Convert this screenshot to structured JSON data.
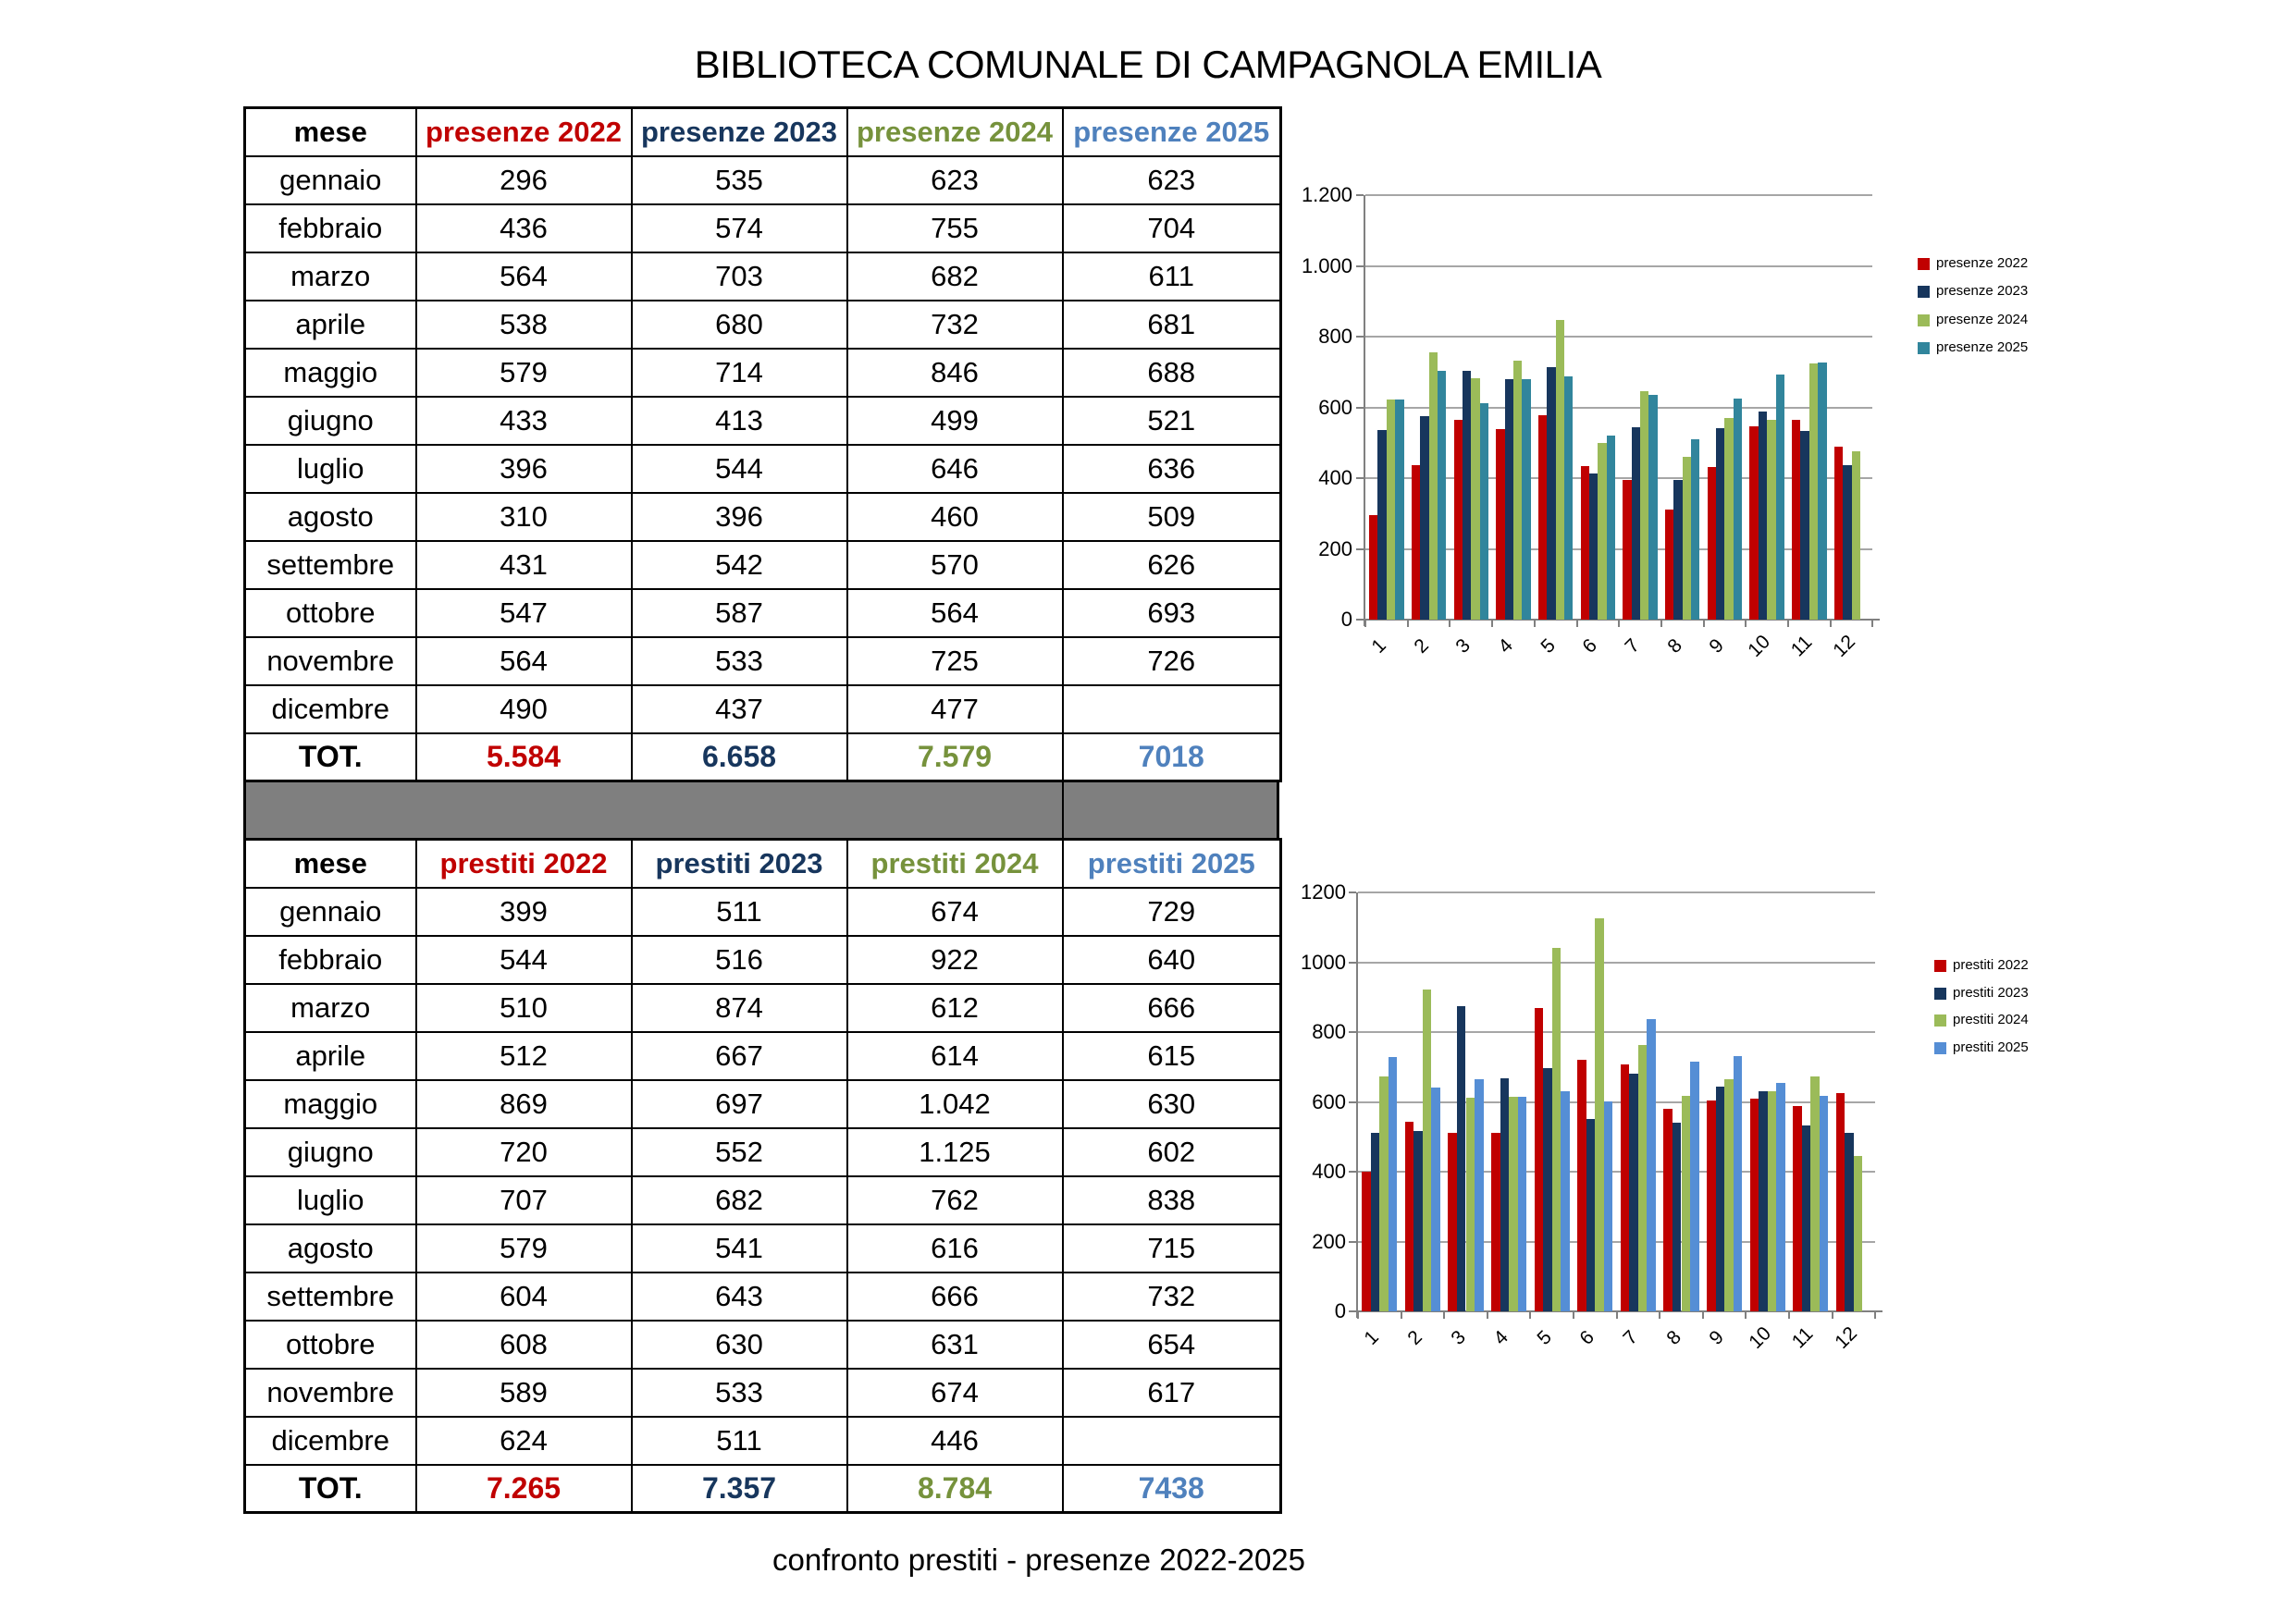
{
  "title": "BIBLIOTECA COMUNALE DI CAMPAGNOLA EMILIA",
  "caption": "confronto prestiti - presenze 2022-2025",
  "months": [
    "gennaio",
    "febbraio",
    "marzo",
    "aprile",
    "maggio",
    "giugno",
    "luglio",
    "agosto",
    "settembre",
    "ottobre",
    "novembre",
    "dicembre"
  ],
  "total_label": "TOT.",
  "column_text_colors": [
    "#000000",
    "#C00000",
    "#17365D",
    "#76923C",
    "#4F81BD"
  ],
  "separator_color": "#7F7F7F",
  "tables": [
    {
      "name": "presenze",
      "headers": [
        "mese",
        "presenze 2022",
        "presenze 2023",
        "presenze 2024",
        "presenze 2025"
      ],
      "rows": [
        [
          "296",
          "535",
          "623",
          "623"
        ],
        [
          "436",
          "574",
          "755",
          "704"
        ],
        [
          "564",
          "703",
          "682",
          "611"
        ],
        [
          "538",
          "680",
          "732",
          "681"
        ],
        [
          "579",
          "714",
          "846",
          "688"
        ],
        [
          "433",
          "413",
          "499",
          "521"
        ],
        [
          "396",
          "544",
          "646",
          "636"
        ],
        [
          "310",
          "396",
          "460",
          "509"
        ],
        [
          "431",
          "542",
          "570",
          "626"
        ],
        [
          "547",
          "587",
          "564",
          "693"
        ],
        [
          "564",
          "533",
          "725",
          "726"
        ],
        [
          "490",
          "437",
          "477",
          ""
        ]
      ],
      "totals": [
        "5.584",
        "6.658",
        "7.579",
        "7018"
      ]
    },
    {
      "name": "prestiti",
      "headers": [
        "mese",
        "prestiti 2022",
        "prestiti 2023",
        "prestiti 2024",
        "prestiti 2025"
      ],
      "rows": [
        [
          "399",
          "511",
          "674",
          "729"
        ],
        [
          "544",
          "516",
          "922",
          "640"
        ],
        [
          "510",
          "874",
          "612",
          "666"
        ],
        [
          "512",
          "667",
          "614",
          "615"
        ],
        [
          "869",
          "697",
          "1.042",
          "630"
        ],
        [
          "720",
          "552",
          "1.125",
          "602"
        ],
        [
          "707",
          "682",
          "762",
          "838"
        ],
        [
          "579",
          "541",
          "616",
          "715"
        ],
        [
          "604",
          "643",
          "666",
          "732"
        ],
        [
          "608",
          "630",
          "631",
          "654"
        ],
        [
          "589",
          "533",
          "674",
          "617"
        ],
        [
          "624",
          "511",
          "446",
          ""
        ]
      ],
      "totals": [
        "7.265",
        "7.357",
        "8.784",
        "7438"
      ]
    }
  ],
  "chart_data": [
    {
      "type": "bar",
      "title": "",
      "categories": [
        "1",
        "2",
        "3",
        "4",
        "5",
        "6",
        "7",
        "8",
        "9",
        "10",
        "11",
        "12"
      ],
      "xlabel": "",
      "ylabel": "",
      "ylim": [
        0,
        1200
      ],
      "y_tick_labels": [
        "0",
        "200",
        "400",
        "600",
        "800",
        "1.000",
        "1.200"
      ],
      "grid": true,
      "legend_position": "right",
      "series": [
        {
          "name": "presenze 2022",
          "color": "#C00000",
          "values": [
            296,
            436,
            564,
            538,
            579,
            433,
            396,
            310,
            431,
            547,
            564,
            490
          ]
        },
        {
          "name": "presenze 2023",
          "color": "#17365D",
          "values": [
            535,
            574,
            703,
            680,
            714,
            413,
            544,
            396,
            542,
            587,
            533,
            437
          ]
        },
        {
          "name": "presenze 2024",
          "color": "#9BBB59",
          "values": [
            623,
            755,
            682,
            732,
            846,
            499,
            646,
            460,
            570,
            564,
            725,
            477
          ]
        },
        {
          "name": "presenze 2025",
          "color": "#31859C",
          "values": [
            623,
            704,
            611,
            681,
            688,
            521,
            636,
            509,
            626,
            693,
            726,
            null
          ]
        }
      ]
    },
    {
      "type": "bar",
      "title": "",
      "categories": [
        "1",
        "2",
        "3",
        "4",
        "5",
        "6",
        "7",
        "8",
        "9",
        "10",
        "11",
        "12"
      ],
      "xlabel": "",
      "ylabel": "",
      "ylim": [
        0,
        1200
      ],
      "y_tick_labels": [
        "0",
        "200",
        "400",
        "600",
        "800",
        "1000",
        "1200"
      ],
      "grid": true,
      "legend_position": "right",
      "series": [
        {
          "name": "prestiti 2022",
          "color": "#C00000",
          "values": [
            399,
            544,
            510,
            512,
            869,
            720,
            707,
            579,
            604,
            608,
            589,
            624
          ]
        },
        {
          "name": "prestiti 2023",
          "color": "#17365D",
          "values": [
            511,
            516,
            874,
            667,
            697,
            552,
            682,
            541,
            643,
            630,
            533,
            511
          ]
        },
        {
          "name": "prestiti 2024",
          "color": "#9BBB59",
          "values": [
            674,
            922,
            612,
            614,
            1042,
            1125,
            762,
            616,
            666,
            631,
            674,
            446
          ]
        },
        {
          "name": "prestiti 2025",
          "color": "#558ED5",
          "values": [
            729,
            640,
            666,
            615,
            630,
            602,
            838,
            715,
            732,
            654,
            617,
            null
          ]
        }
      ]
    }
  ]
}
